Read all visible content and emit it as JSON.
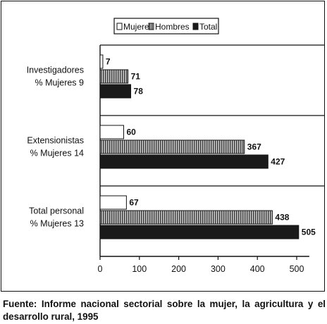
{
  "chart_data": {
    "type": "bar",
    "orientation": "horizontal",
    "categories": [
      {
        "line1": "Investigadores",
        "line2": "% Mujeres 9"
      },
      {
        "line1": "Extensionistas",
        "line2": "% Mujeres 14"
      },
      {
        "line1": "Total personal",
        "line2": "% Mujeres 13"
      }
    ],
    "series": [
      {
        "name": "Mujeres",
        "values": [
          7,
          60,
          67
        ],
        "color": "#ffffff",
        "pattern": "none"
      },
      {
        "name": "Hombres",
        "values": [
          71,
          367,
          438
        ],
        "color": "#808080",
        "pattern": "vertical-hatch"
      },
      {
        "name": "Total",
        "values": [
          78,
          427,
          505
        ],
        "color": "#1a1a1a",
        "pattern": "solid"
      }
    ],
    "xlim": [
      0,
      550
    ],
    "xticks": [
      0,
      100,
      200,
      300,
      400,
      500
    ],
    "legend_position": "top-center",
    "grid": false
  },
  "source_note": "Fuente: Informe nacional sectorial sobre la mujer, la agricultura y el desarrollo rural, 1995"
}
